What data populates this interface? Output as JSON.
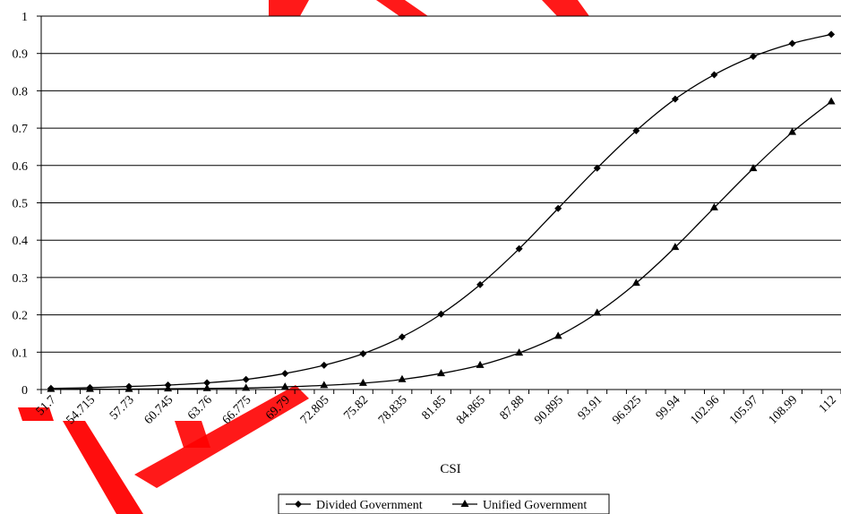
{
  "chart_data": {
    "type": "line",
    "title": "",
    "xlabel": "CSI",
    "ylabel": "",
    "ylim": [
      0,
      1
    ],
    "yticks": [
      "0",
      "0.1",
      "0.2",
      "0.3",
      "0.4",
      "0.5",
      "0.6",
      "0.7",
      "0.8",
      "0.9",
      "1"
    ],
    "grid": "horizontal",
    "legend_position": "bottom",
    "x": [
      51.7,
      53.2075,
      54.715,
      56.2225,
      57.73,
      59.2375,
      60.745,
      62.2525,
      63.76,
      65.2675,
      66.775,
      68.2825,
      69.79,
      71.2975,
      72.805,
      74.3125,
      75.82,
      77.3275,
      78.835,
      80.3425,
      81.85,
      83.3575,
      84.865,
      86.3725,
      87.88,
      89.3875,
      90.895,
      92.4025,
      93.91,
      95.4175,
      96.925,
      98.4325,
      99.94,
      101.45,
      102.96,
      104.465,
      105.97,
      107.48,
      108.99,
      110.495,
      112
    ],
    "xticks": [
      "51.7",
      "54.715",
      "57.73",
      "60.745",
      "63.76",
      "66.775",
      "69.79",
      "72.805",
      "75.82",
      "78.835",
      "81.85",
      "84.865",
      "87.88",
      "90.895",
      "93.91",
      "96.925",
      "99.94",
      "102.96",
      "105.97",
      "108.99",
      "112"
    ],
    "series": [
      {
        "name": "Divided Government",
        "marker": "diamond",
        "color": "#000000",
        "points": [
          {
            "x": 51.7,
            "y": 0.003
          },
          {
            "x": 54.715,
            "y": 0.005
          },
          {
            "x": 57.73,
            "y": 0.008
          },
          {
            "x": 60.745,
            "y": 0.012
          },
          {
            "x": 63.76,
            "y": 0.018
          },
          {
            "x": 66.775,
            "y": 0.027
          },
          {
            "x": 69.79,
            "y": 0.043
          },
          {
            "x": 72.805,
            "y": 0.065
          },
          {
            "x": 75.82,
            "y": 0.096
          },
          {
            "x": 78.835,
            "y": 0.141
          },
          {
            "x": 81.85,
            "y": 0.202
          },
          {
            "x": 84.865,
            "y": 0.281
          },
          {
            "x": 87.88,
            "y": 0.377
          },
          {
            "x": 90.895,
            "y": 0.485
          },
          {
            "x": 93.91,
            "y": 0.593
          },
          {
            "x": 96.925,
            "y": 0.693
          },
          {
            "x": 99.94,
            "y": 0.778
          },
          {
            "x": 102.96,
            "y": 0.843
          },
          {
            "x": 105.97,
            "y": 0.892
          },
          {
            "x": 108.99,
            "y": 0.927
          },
          {
            "x": 112,
            "y": 0.951
          }
        ]
      },
      {
        "name": "Unified Government",
        "marker": "triangle",
        "color": "#000000",
        "points": [
          {
            "x": 51.7,
            "y": 0.001
          },
          {
            "x": 54.715,
            "y": 0.001
          },
          {
            "x": 57.73,
            "y": 0.001
          },
          {
            "x": 60.745,
            "y": 0.002
          },
          {
            "x": 63.76,
            "y": 0.003
          },
          {
            "x": 66.775,
            "y": 0.004
          },
          {
            "x": 69.79,
            "y": 0.007
          },
          {
            "x": 72.805,
            "y": 0.011
          },
          {
            "x": 75.82,
            "y": 0.017
          },
          {
            "x": 78.835,
            "y": 0.027
          },
          {
            "x": 81.85,
            "y": 0.043
          },
          {
            "x": 84.865,
            "y": 0.065
          },
          {
            "x": 87.88,
            "y": 0.098
          },
          {
            "x": 90.895,
            "y": 0.143
          },
          {
            "x": 93.91,
            "y": 0.205
          },
          {
            "x": 96.925,
            "y": 0.285
          },
          {
            "x": 99.94,
            "y": 0.381
          },
          {
            "x": 102.96,
            "y": 0.487
          },
          {
            "x": 105.97,
            "y": 0.592
          },
          {
            "x": 108.99,
            "y": 0.689
          },
          {
            "x": 112,
            "y": 0.771
          }
        ]
      }
    ],
    "watermark_color": "#ff0000"
  }
}
